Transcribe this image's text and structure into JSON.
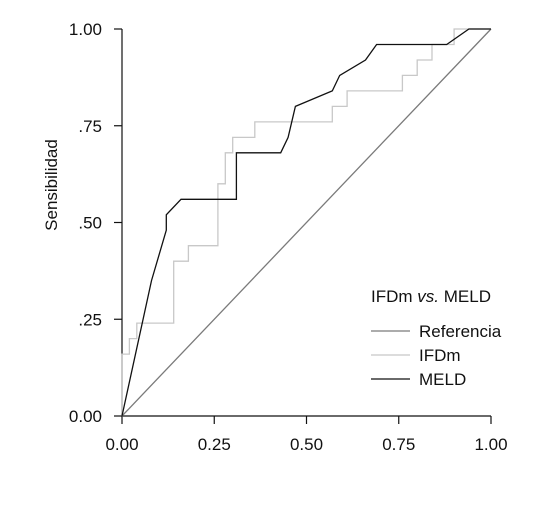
{
  "chart_data": {
    "type": "line",
    "xlabel": "",
    "ylabel": "Sensibilidad",
    "xlim": [
      0,
      1
    ],
    "ylim": [
      0,
      1
    ],
    "x_ticks": [
      0,
      0.25,
      0.5,
      0.75,
      1
    ],
    "x_tick_labels": [
      "0.00",
      "0.25",
      "0.50",
      "0.75",
      "1.00"
    ],
    "y_ticks": [
      0,
      0.25,
      0.5,
      0.75,
      1
    ],
    "y_tick_labels": [
      "0.00",
      ".25",
      ".50",
      ".75",
      "1.00"
    ],
    "grid": false,
    "legend": {
      "title": "IFDm vs. MELD",
      "placement": "bottom-right",
      "items": [
        "Referencia",
        "IFDm",
        "MELD"
      ]
    },
    "series": [
      {
        "name": "Referencia",
        "color": "#7a7a7a",
        "points": [
          [
            0,
            0
          ],
          [
            1,
            1
          ]
        ]
      },
      {
        "name": "IFDm",
        "color": "#c8c8c8",
        "points": [
          [
            0,
            0
          ],
          [
            0,
            0.16
          ],
          [
            0.02,
            0.16
          ],
          [
            0.02,
            0.2
          ],
          [
            0.04,
            0.2
          ],
          [
            0.04,
            0.24
          ],
          [
            0.14,
            0.24
          ],
          [
            0.14,
            0.4
          ],
          [
            0.18,
            0.4
          ],
          [
            0.18,
            0.44
          ],
          [
            0.26,
            0.44
          ],
          [
            0.26,
            0.6
          ],
          [
            0.28,
            0.6
          ],
          [
            0.28,
            0.68
          ],
          [
            0.3,
            0.68
          ],
          [
            0.3,
            0.72
          ],
          [
            0.36,
            0.72
          ],
          [
            0.36,
            0.76
          ],
          [
            0.57,
            0.76
          ],
          [
            0.57,
            0.8
          ],
          [
            0.61,
            0.8
          ],
          [
            0.61,
            0.84
          ],
          [
            0.76,
            0.84
          ],
          [
            0.76,
            0.88
          ],
          [
            0.8,
            0.88
          ],
          [
            0.8,
            0.92
          ],
          [
            0.84,
            0.92
          ],
          [
            0.84,
            0.96
          ],
          [
            0.9,
            0.96
          ],
          [
            0.9,
            1
          ],
          [
            1,
            1
          ]
        ]
      },
      {
        "name": "MELD",
        "color": "#111111",
        "points": [
          [
            0,
            0
          ],
          [
            0.08,
            0.35
          ],
          [
            0.12,
            0.48
          ],
          [
            0.12,
            0.52
          ],
          [
            0.16,
            0.56
          ],
          [
            0.31,
            0.56
          ],
          [
            0.31,
            0.68
          ],
          [
            0.43,
            0.68
          ],
          [
            0.45,
            0.72
          ],
          [
            0.47,
            0.8
          ],
          [
            0.57,
            0.84
          ],
          [
            0.59,
            0.88
          ],
          [
            0.66,
            0.92
          ],
          [
            0.69,
            0.96
          ],
          [
            0.88,
            0.96
          ],
          [
            0.94,
            1
          ],
          [
            1,
            1
          ]
        ]
      }
    ]
  }
}
